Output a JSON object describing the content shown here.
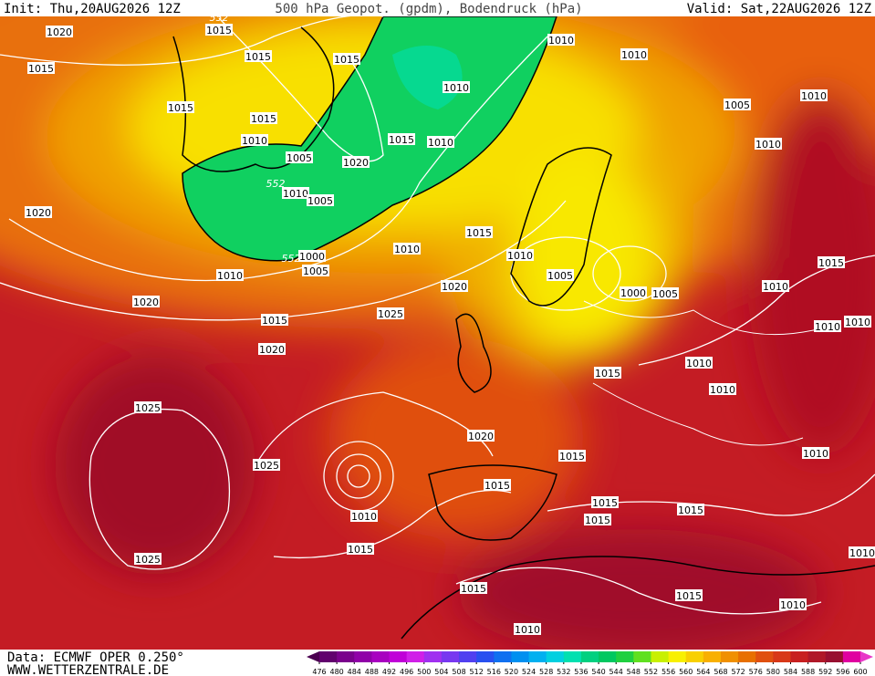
{
  "header": {
    "init": "Init: Thu,20AUG2026 12Z",
    "title": "500 hPa Geopot. (gpdm), Bodendruck (hPa)",
    "valid": "Valid: Sat,22AUG2026 12Z"
  },
  "footer": {
    "source": "Data: ECMWF OPER 0.250°",
    "website": "WWW.WETTERZENTRALE.DE"
  },
  "isobar_labels": [
    1020,
    1015,
    1015,
    1015,
    1015,
    1015,
    1015,
    1010,
    1005,
    1020,
    1015,
    1010,
    1010,
    1010,
    1010,
    1010,
    1005,
    1010,
    1020,
    1010,
    1005,
    1000,
    1005,
    1010,
    1010,
    1015,
    1010,
    1005,
    1000,
    1005,
    1020,
    1020,
    1015,
    1025,
    1020,
    1015,
    1010,
    1010,
    1010,
    1010,
    1015,
    1010,
    1025,
    1020,
    1025,
    1015,
    1010,
    1015,
    1010,
    1015,
    1015,
    1015,
    1015,
    1025,
    1015,
    1015,
    1010,
    1010,
    1010
  ],
  "height_labels": [
    552,
    552,
    552
  ],
  "colorbar": {
    "ticks": [
      476,
      480,
      484,
      488,
      492,
      496,
      500,
      504,
      508,
      512,
      516,
      520,
      524,
      528,
      532,
      536,
      540,
      544,
      548,
      552,
      556,
      560,
      564,
      568,
      572,
      576,
      580,
      584,
      588,
      592,
      596,
      600
    ],
    "colors": [
      "#4a0050",
      "#62006e",
      "#7a008c",
      "#9000a8",
      "#a800c0",
      "#c000d8",
      "#d020e8",
      "#a030f0",
      "#7838f0",
      "#5040f0",
      "#2850f0",
      "#1070f0",
      "#0090f0",
      "#00b0f0",
      "#00d0e0",
      "#00e0b0",
      "#00d080",
      "#00c860",
      "#20d040",
      "#60e020",
      "#c8f000",
      "#f8f000",
      "#f8d000",
      "#f8b000",
      "#f09000",
      "#e87000",
      "#e05010",
      "#d83818",
      "#c82020",
      "#b01828",
      "#981030",
      "#e000a0",
      "#e838c8"
    ]
  }
}
